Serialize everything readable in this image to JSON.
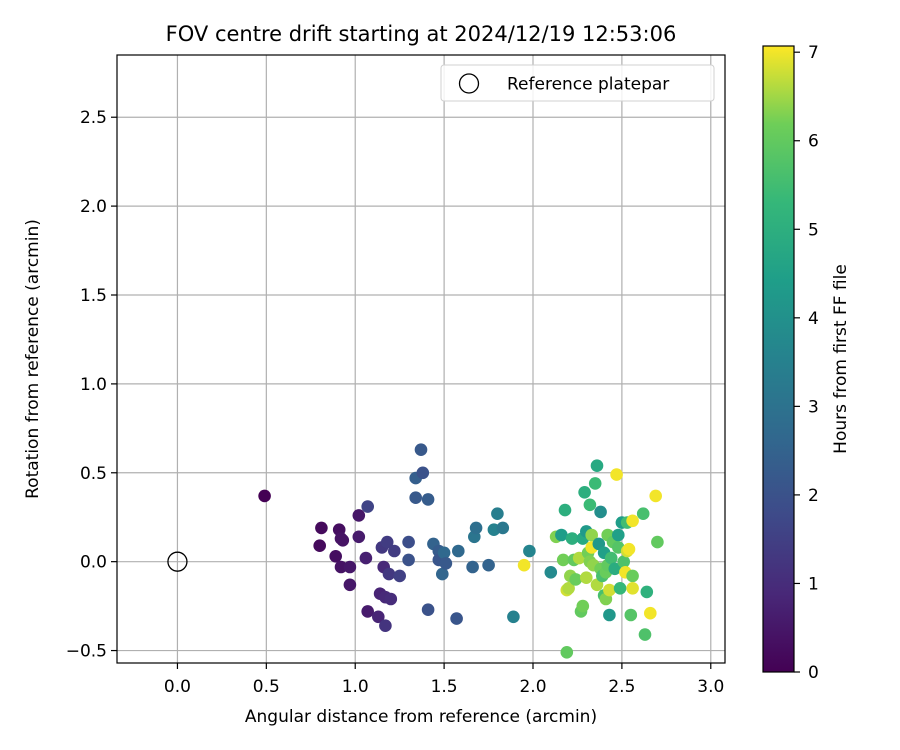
{
  "chart_data": {
    "type": "scatter",
    "title": "FOV centre drift starting at 2024/12/19 12:53:06",
    "xlabel": "Angular distance from reference (arcmin)",
    "ylabel": "Rotation from reference (arcmin)",
    "xlim": [
      -0.34,
      3.08
    ],
    "ylim": [
      -0.57,
      2.85
    ],
    "x_ticks": [
      "0.0",
      "0.5",
      "1.0",
      "1.5",
      "2.0",
      "2.5",
      "3.0"
    ],
    "y_ticks": [
      "−0.5",
      "0.0",
      "0.5",
      "1.0",
      "1.5",
      "2.0",
      "2.5"
    ],
    "grid": true,
    "legend": {
      "position": "top-right",
      "entries": [
        {
          "label": "Reference platepar",
          "marker": "open-circle"
        }
      ]
    },
    "reference_point": {
      "x": 0.0,
      "y": 0.0
    },
    "colorbar": {
      "label": "Hours from first FF file",
      "colormap": "viridis",
      "range": [
        0,
        7.07
      ],
      "ticks": [
        "0",
        "1",
        "2",
        "3",
        "4",
        "5",
        "6",
        "7"
      ]
    },
    "points": [
      {
        "x": 0.49,
        "y": 0.37,
        "c": 0.0
      },
      {
        "x": 0.8,
        "y": 0.09,
        "c": 0.2
      },
      {
        "x": 0.81,
        "y": 0.19,
        "c": 0.2
      },
      {
        "x": 0.89,
        "y": 0.03,
        "c": 0.3
      },
      {
        "x": 0.91,
        "y": 0.18,
        "c": 0.3
      },
      {
        "x": 0.92,
        "y": 0.13,
        "c": 0.4
      },
      {
        "x": 0.92,
        "y": -0.03,
        "c": 0.4
      },
      {
        "x": 0.93,
        "y": 0.12,
        "c": 0.4
      },
      {
        "x": 0.97,
        "y": -0.03,
        "c": 0.5
      },
      {
        "x": 0.97,
        "y": -0.13,
        "c": 0.5
      },
      {
        "x": 1.02,
        "y": 0.26,
        "c": 0.5
      },
      {
        "x": 1.02,
        "y": 0.14,
        "c": 0.6
      },
      {
        "x": 1.06,
        "y": 0.02,
        "c": 0.7
      },
      {
        "x": 1.07,
        "y": -0.28,
        "c": 0.6
      },
      {
        "x": 1.13,
        "y": -0.31,
        "c": 0.8
      },
      {
        "x": 1.14,
        "y": -0.18,
        "c": 0.8
      },
      {
        "x": 1.16,
        "y": -0.03,
        "c": 0.9
      },
      {
        "x": 1.17,
        "y": -0.2,
        "c": 0.9
      },
      {
        "x": 1.2,
        "y": -0.21,
        "c": 1.0
      },
      {
        "x": 1.17,
        "y": -0.36,
        "c": 1.2
      },
      {
        "x": 1.07,
        "y": 0.31,
        "c": 1.6
      },
      {
        "x": 1.15,
        "y": 0.08,
        "c": 1.3
      },
      {
        "x": 1.18,
        "y": 0.11,
        "c": 1.4
      },
      {
        "x": 1.19,
        "y": -0.07,
        "c": 1.3
      },
      {
        "x": 1.22,
        "y": 0.06,
        "c": 1.4
      },
      {
        "x": 1.25,
        "y": -0.08,
        "c": 1.5
      },
      {
        "x": 1.3,
        "y": 0.11,
        "c": 1.9
      },
      {
        "x": 1.3,
        "y": 0.01,
        "c": 2.0
      },
      {
        "x": 1.34,
        "y": 0.36,
        "c": 2.2
      },
      {
        "x": 1.34,
        "y": 0.47,
        "c": 2.4
      },
      {
        "x": 1.37,
        "y": 0.63,
        "c": 2.2
      },
      {
        "x": 1.38,
        "y": 0.5,
        "c": 2.0
      },
      {
        "x": 1.41,
        "y": 0.35,
        "c": 2.3
      },
      {
        "x": 1.41,
        "y": -0.27,
        "c": 2.0
      },
      {
        "x": 1.44,
        "y": 0.1,
        "c": 2.5
      },
      {
        "x": 1.47,
        "y": 0.06,
        "c": 2.3
      },
      {
        "x": 1.47,
        "y": 0.01,
        "c": 2.1
      },
      {
        "x": 1.49,
        "y": -0.07,
        "c": 2.6
      },
      {
        "x": 1.5,
        "y": 0.05,
        "c": 2.7
      },
      {
        "x": 1.51,
        "y": -0.01,
        "c": 2.2
      },
      {
        "x": 1.57,
        "y": -0.32,
        "c": 2.1
      },
      {
        "x": 1.58,
        "y": 0.06,
        "c": 2.7
      },
      {
        "x": 1.66,
        "y": -0.03,
        "c": 2.5
      },
      {
        "x": 1.67,
        "y": 0.14,
        "c": 3.1
      },
      {
        "x": 1.68,
        "y": 0.19,
        "c": 2.9
      },
      {
        "x": 1.75,
        "y": -0.02,
        "c": 2.5
      },
      {
        "x": 1.78,
        "y": 0.18,
        "c": 3.5
      },
      {
        "x": 1.8,
        "y": 0.27,
        "c": 3.4
      },
      {
        "x": 1.83,
        "y": 0.19,
        "c": 3.2
      },
      {
        "x": 1.89,
        "y": -0.31,
        "c": 3.5
      },
      {
        "x": 1.95,
        "y": -0.02,
        "c": 7.0
      },
      {
        "x": 1.98,
        "y": 0.06,
        "c": 3.6
      },
      {
        "x": 2.1,
        "y": -0.06,
        "c": 3.8
      },
      {
        "x": 2.13,
        "y": 0.14,
        "c": 6.3
      },
      {
        "x": 2.16,
        "y": 0.15,
        "c": 4.4
      },
      {
        "x": 2.17,
        "y": 0.01,
        "c": 6.2
      },
      {
        "x": 2.18,
        "y": 0.29,
        "c": 5.0
      },
      {
        "x": 2.19,
        "y": -0.16,
        "c": 6.8
      },
      {
        "x": 2.19,
        "y": -0.51,
        "c": 6.0
      },
      {
        "x": 2.2,
        "y": -0.15,
        "c": 6.6
      },
      {
        "x": 2.21,
        "y": -0.08,
        "c": 6.4
      },
      {
        "x": 2.22,
        "y": 0.13,
        "c": 5.0
      },
      {
        "x": 2.23,
        "y": 0.01,
        "c": 6.0
      },
      {
        "x": 2.24,
        "y": -0.1,
        "c": 6.1
      },
      {
        "x": 2.26,
        "y": 0.02,
        "c": 6.6
      },
      {
        "x": 2.27,
        "y": -0.28,
        "c": 6.0
      },
      {
        "x": 2.28,
        "y": -0.25,
        "c": 6.2
      },
      {
        "x": 2.28,
        "y": 0.13,
        "c": 4.8
      },
      {
        "x": 2.29,
        "y": 0.39,
        "c": 5.0
      },
      {
        "x": 2.3,
        "y": -0.09,
        "c": 6.6
      },
      {
        "x": 2.3,
        "y": 0.17,
        "c": 4.3
      },
      {
        "x": 2.31,
        "y": 0.05,
        "c": 6.2
      },
      {
        "x": 2.32,
        "y": 0.0,
        "c": 6.3
      },
      {
        "x": 2.32,
        "y": 0.32,
        "c": 5.4
      },
      {
        "x": 2.33,
        "y": 0.08,
        "c": 7.0
      },
      {
        "x": 2.33,
        "y": 0.15,
        "c": 6.4
      },
      {
        "x": 2.34,
        "y": -0.02,
        "c": 6.4
      },
      {
        "x": 2.35,
        "y": 0.44,
        "c": 5.4
      },
      {
        "x": 2.36,
        "y": 0.54,
        "c": 4.8
      },
      {
        "x": 2.36,
        "y": -0.13,
        "c": 6.6
      },
      {
        "x": 2.37,
        "y": 0.1,
        "c": 4.2
      },
      {
        "x": 2.38,
        "y": 0.28,
        "c": 3.9
      },
      {
        "x": 2.38,
        "y": -0.04,
        "c": 6.2
      },
      {
        "x": 2.39,
        "y": -0.08,
        "c": 5.6
      },
      {
        "x": 2.4,
        "y": -0.19,
        "c": 5.6
      },
      {
        "x": 2.4,
        "y": 0.05,
        "c": 4.5
      },
      {
        "x": 2.41,
        "y": -0.06,
        "c": 6.1
      },
      {
        "x": 2.41,
        "y": -0.21,
        "c": 6.3
      },
      {
        "x": 2.42,
        "y": 0.15,
        "c": 6.2
      },
      {
        "x": 2.42,
        "y": -0.02,
        "c": 6.0
      },
      {
        "x": 2.43,
        "y": -0.16,
        "c": 6.8
      },
      {
        "x": 2.43,
        "y": -0.3,
        "c": 4.2
      },
      {
        "x": 2.44,
        "y": 0.02,
        "c": 5.5
      },
      {
        "x": 2.45,
        "y": 0.11,
        "c": 6.0
      },
      {
        "x": 2.46,
        "y": -0.04,
        "c": 4.9
      },
      {
        "x": 2.47,
        "y": 0.49,
        "c": 7.0
      },
      {
        "x": 2.48,
        "y": 0.15,
        "c": 4.5
      },
      {
        "x": 2.48,
        "y": 0.08,
        "c": 5.8
      },
      {
        "x": 2.49,
        "y": -0.15,
        "c": 5.3
      },
      {
        "x": 2.5,
        "y": 0.22,
        "c": 4.4
      },
      {
        "x": 2.51,
        "y": 0.0,
        "c": 5.7
      },
      {
        "x": 2.52,
        "y": -0.06,
        "c": 7.0
      },
      {
        "x": 2.53,
        "y": 0.22,
        "c": 5.5
      },
      {
        "x": 2.53,
        "y": 0.06,
        "c": 6.8
      },
      {
        "x": 2.54,
        "y": 0.07,
        "c": 7.0
      },
      {
        "x": 2.55,
        "y": -0.3,
        "c": 5.8
      },
      {
        "x": 2.56,
        "y": 0.23,
        "c": 7.0
      },
      {
        "x": 2.56,
        "y": -0.08,
        "c": 6.1
      },
      {
        "x": 2.56,
        "y": -0.15,
        "c": 6.9
      },
      {
        "x": 2.62,
        "y": 0.27,
        "c": 5.6
      },
      {
        "x": 2.63,
        "y": -0.41,
        "c": 5.7
      },
      {
        "x": 2.64,
        "y": -0.17,
        "c": 5.1
      },
      {
        "x": 2.66,
        "y": -0.29,
        "c": 7.0
      },
      {
        "x": 2.69,
        "y": 0.37,
        "c": 7.0
      },
      {
        "x": 2.7,
        "y": 0.11,
        "c": 6.0
      }
    ]
  }
}
